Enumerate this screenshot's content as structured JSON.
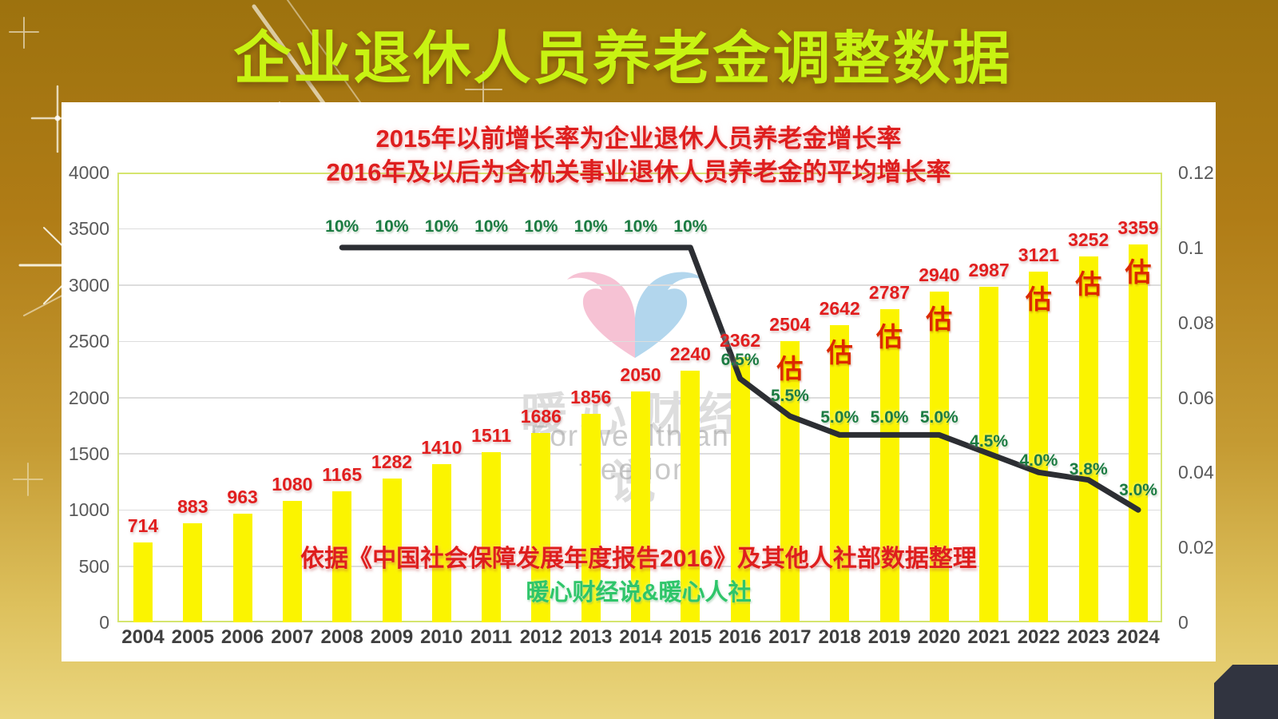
{
  "title": "企业退休人员养老金调整数据",
  "subtitle_line1": "2015年以前增长率为企业退休人员养老金增长率",
  "subtitle_line2": "2016年及以后为含机关事业退休人员养老金的平均增长率",
  "source_note": "依据《中国社会保障发展年度报告2016》及其他人社部数据整理",
  "credit": "暖心财经说&暖心人社",
  "watermark": {
    "cn": "暖心财经说",
    "en": "For wealth and freedom",
    "logo": "heart-logo"
  },
  "colors": {
    "bar": "#FBF400",
    "trend_line": "#2C2E33",
    "value_label": "#E11E1E",
    "pct_label": "#1B7B42",
    "estimate_label": "#DC2900",
    "title": "#C8F312",
    "red_text": "#DE1E1E",
    "credit_green": "#2EC56A",
    "axis_text": "#595959",
    "grid": "#DDDDDD",
    "plot_border": "#D5E56E",
    "panel": "#FFFFFF",
    "bg_top": "#9D720E",
    "bg_bottom": "#EAD67C",
    "corner": "#313440"
  },
  "chart_data": {
    "type": "bar+line",
    "title": "企业退休人员养老金调整数据",
    "categories": [
      2004,
      2005,
      2006,
      2007,
      2008,
      2009,
      2010,
      2011,
      2012,
      2013,
      2014,
      2015,
      2016,
      2017,
      2018,
      2019,
      2020,
      2021,
      2022,
      2023,
      2024
    ],
    "bar_values": [
      714,
      883,
      963,
      1080,
      1165,
      1282,
      1410,
      1511,
      1686,
      1856,
      2050,
      2240,
      2362,
      2504,
      2642,
      2787,
      2940,
      2987,
      3121,
      3252,
      3359
    ],
    "line_points": [
      {
        "year": 2008,
        "value": 0.1,
        "label": "10%"
      },
      {
        "year": 2009,
        "value": 0.1,
        "label": "10%"
      },
      {
        "year": 2010,
        "value": 0.1,
        "label": "10%"
      },
      {
        "year": 2011,
        "value": 0.1,
        "label": "10%"
      },
      {
        "year": 2012,
        "value": 0.1,
        "label": "10%"
      },
      {
        "year": 2013,
        "value": 0.1,
        "label": "10%"
      },
      {
        "year": 2014,
        "value": 0.1,
        "label": "10%"
      },
      {
        "year": 2015,
        "value": 0.1,
        "label": "10%"
      },
      {
        "year": 2016,
        "value": 0.065,
        "label": "6.5%"
      },
      {
        "year": 2017,
        "value": 0.055,
        "label": "5.5%"
      },
      {
        "year": 2018,
        "value": 0.05,
        "label": "5.0%"
      },
      {
        "year": 2019,
        "value": 0.05,
        "label": "5.0%"
      },
      {
        "year": 2020,
        "value": 0.05,
        "label": "5.0%"
      },
      {
        "year": 2021,
        "value": 0.045,
        "label": "4.5%"
      },
      {
        "year": 2022,
        "value": 0.04,
        "label": "4.0%"
      },
      {
        "year": 2023,
        "value": 0.038,
        "label": "3.8%"
      },
      {
        "year": 2024,
        "value": 0.03,
        "label": "3.0%"
      }
    ],
    "estimate_marker": "估",
    "estimated_years": [
      2017,
      2018,
      2019,
      2020,
      2022,
      2023,
      2024
    ],
    "left_axis": {
      "min": 0,
      "max": 4000,
      "ticks": [
        0,
        500,
        1000,
        1500,
        2000,
        2500,
        3000,
        3500,
        4000
      ]
    },
    "right_axis": {
      "min": 0,
      "max": 0.12,
      "tick_labels": [
        "0",
        "0.02",
        "0.04",
        "0.06",
        "0.08",
        "0.1",
        "0.12"
      ]
    },
    "grid": true,
    "legend": false
  }
}
